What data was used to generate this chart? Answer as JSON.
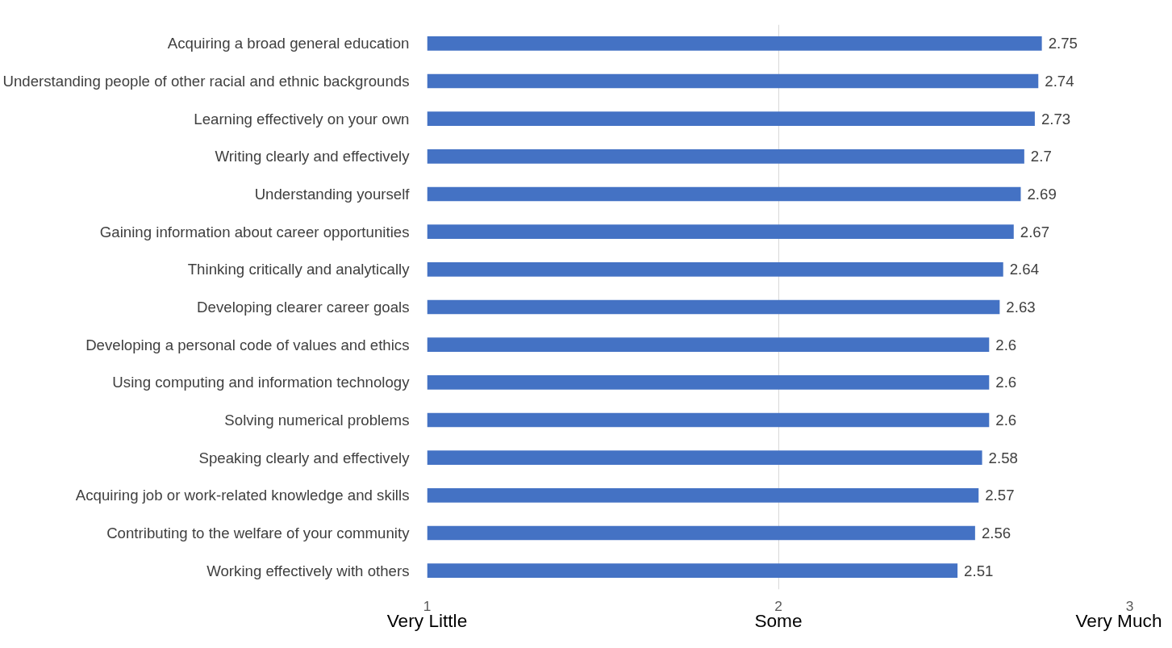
{
  "chart_data": {
    "type": "bar",
    "orientation": "horizontal",
    "categories": [
      "Acquiring a broad general education",
      "Understanding people of other racial and ethnic backgrounds",
      "Learning effectively on your own",
      "Writing clearly and effectively",
      "Understanding yourself",
      "Gaining information about career opportunities",
      "Thinking critically and analytically",
      "Developing clearer career goals",
      "Developing a personal code of values and ethics",
      "Using computing and information technology",
      "Solving numerical problems",
      "Speaking clearly and effectively",
      "Acquiring job or work-related knowledge and skills",
      "Contributing to the welfare of your community",
      "Working effectively with others"
    ],
    "values": [
      2.75,
      2.74,
      2.73,
      2.7,
      2.69,
      2.67,
      2.64,
      2.63,
      2.6,
      2.6,
      2.6,
      2.58,
      2.57,
      2.56,
      2.51
    ],
    "color": "#4472c4",
    "xlim": [
      1,
      3
    ],
    "xticks": [
      1,
      2,
      3
    ],
    "grid": "x",
    "data_labels": true,
    "annotations": [
      "Very Little",
      "Some",
      "Very Much"
    ]
  }
}
